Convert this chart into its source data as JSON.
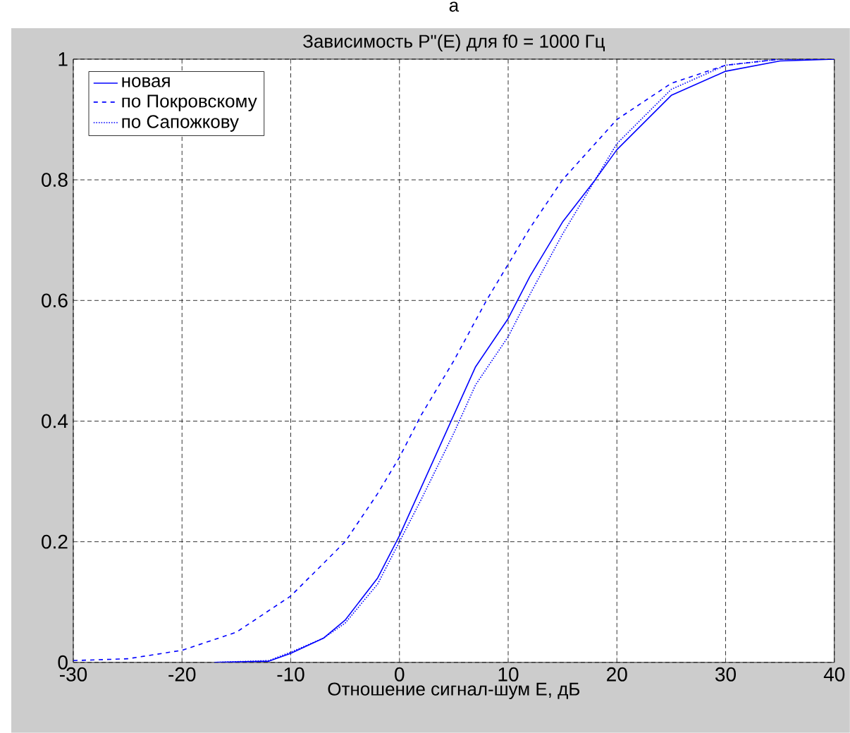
{
  "chart_data": {
    "type": "line",
    "title": "Зависимость P\"(E) для f0 = 1000 Гц",
    "xlabel": "Отношение сигнал-шум E, дБ",
    "annotations": [
      "а"
    ],
    "xlim": [
      -30,
      40
    ],
    "ylim": [
      0,
      1
    ],
    "xticks": [
      -30,
      -20,
      -10,
      0,
      10,
      20,
      30,
      40
    ],
    "yticks": [
      0,
      0.2,
      0.4,
      0.6,
      0.8,
      1
    ],
    "grid": true,
    "legend": "top left",
    "series": [
      {
        "name": "новая",
        "color": "#0000ff",
        "line_style": "solid",
        "x": [
          -17,
          -12,
          -10,
          -7,
          -5,
          -2,
          0,
          2,
          5,
          7,
          10,
          12,
          15,
          18,
          20,
          25,
          30,
          35,
          40
        ],
        "values": [
          0,
          0.002,
          0.015,
          0.04,
          0.07,
          0.14,
          0.21,
          0.29,
          0.41,
          0.49,
          0.57,
          0.64,
          0.73,
          0.8,
          0.85,
          0.94,
          0.98,
          0.997,
          1
        ]
      },
      {
        "name": "по Покровскому",
        "color": "#0000ff",
        "line_style": "dashed",
        "x": [
          -30,
          -25,
          -20,
          -15,
          -10,
          -5,
          -2,
          0,
          2,
          5,
          8,
          10,
          12,
          15,
          20,
          25,
          30,
          35,
          40
        ],
        "values": [
          0.003,
          0.006,
          0.02,
          0.05,
          0.11,
          0.2,
          0.28,
          0.34,
          0.41,
          0.5,
          0.6,
          0.66,
          0.72,
          0.8,
          0.9,
          0.96,
          0.99,
          1,
          1
        ]
      },
      {
        "name": "по Сапожкову",
        "color": "#0000ff",
        "line_style": "dotted",
        "x": [
          -17,
          -12,
          -10,
          -7,
          -5,
          -2,
          0,
          2,
          5,
          7,
          10,
          12,
          15,
          18,
          20,
          25,
          30,
          35,
          40
        ],
        "values": [
          0,
          0.003,
          0.017,
          0.04,
          0.065,
          0.13,
          0.2,
          0.27,
          0.38,
          0.46,
          0.54,
          0.61,
          0.71,
          0.8,
          0.86,
          0.95,
          0.99,
          1,
          1
        ]
      }
    ]
  }
}
